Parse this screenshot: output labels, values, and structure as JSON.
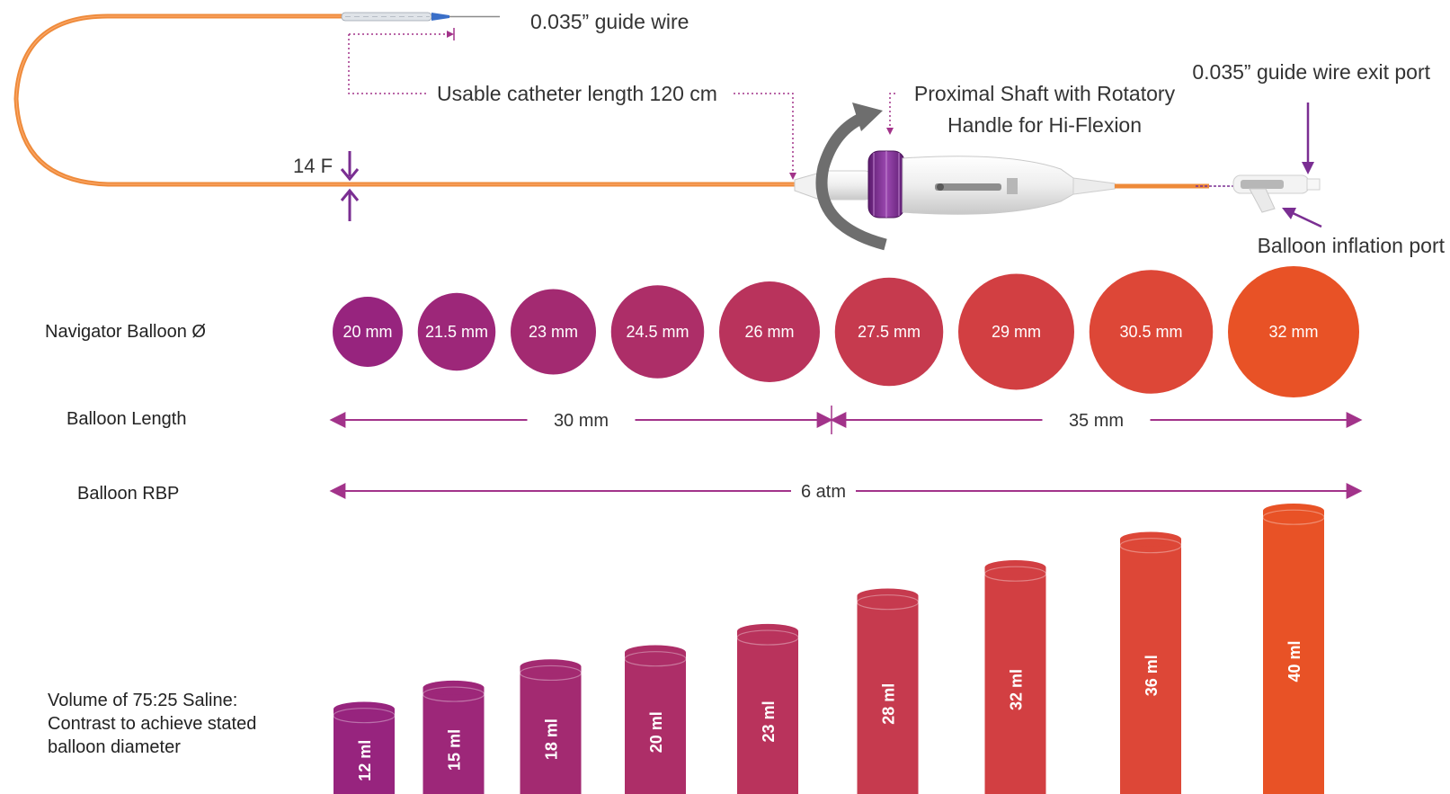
{
  "catheter": {
    "guide_wire_label": "0.035” guide wire",
    "usable_length_label": "Usable catheter length 120 cm",
    "french_size_label": "14 F",
    "handle_label_line1": "Proximal Shaft with Rotatory",
    "handle_label_line2": "Handle for Hi-Flexion",
    "exit_port_label": "0.035” guide wire exit port",
    "inflation_port_label": "Balloon inflation port",
    "colors": {
      "shaft": "#ee8a3a",
      "handle_cap": "#7b2d8e",
      "arrow": "#7a2e92",
      "rotate_arrow": "#6e6e6e"
    }
  },
  "rows": {
    "diameter_label": "Navigator Balloon Ø",
    "length_label": "Balloon Length",
    "rbp_label": "Balloon RBP",
    "volume_label_line1": "Volume of 75:25 Saline:",
    "volume_label_line2": "Contrast to achieve stated",
    "volume_label_line3": "balloon diameter"
  },
  "balloons": [
    {
      "diameter_label": "20 mm",
      "diameter_mm": 20,
      "volume_label": "12 ml",
      "volume_ml": 12,
      "color": "#97247e"
    },
    {
      "diameter_label": "21.5 mm",
      "diameter_mm": 21.5,
      "volume_label": "15 ml",
      "volume_ml": 15,
      "color": "#9d2779"
    },
    {
      "diameter_label": "23 mm",
      "diameter_mm": 23,
      "volume_label": "18 ml",
      "volume_ml": 18,
      "color": "#a32a71"
    },
    {
      "diameter_label": "24.5 mm",
      "diameter_mm": 24.5,
      "volume_label": "20 ml",
      "volume_ml": 20,
      "color": "#ad2e68"
    },
    {
      "diameter_label": "26 mm",
      "diameter_mm": 26,
      "volume_label": "23 ml",
      "volume_ml": 23,
      "color": "#b9335c"
    },
    {
      "diameter_label": "27.5 mm",
      "diameter_mm": 27.5,
      "volume_label": "28 ml",
      "volume_ml": 28,
      "color": "#c63a4e"
    },
    {
      "diameter_label": "29 mm",
      "diameter_mm": 29,
      "volume_label": "32 ml",
      "volume_ml": 32,
      "color": "#d23f42"
    },
    {
      "diameter_label": "30.5 mm",
      "diameter_mm": 30.5,
      "volume_label": "36 ml",
      "volume_ml": 36,
      "color": "#dd4737"
    },
    {
      "diameter_label": "32 mm",
      "diameter_mm": 32,
      "volume_label": "40 ml",
      "volume_ml": 40,
      "color": "#e85226"
    }
  ],
  "length_spans": [
    {
      "label": "30 mm",
      "from": 0,
      "to": 4
    },
    {
      "label": "35 mm",
      "from": 5,
      "to": 8
    }
  ],
  "rbp": {
    "label": "6 atm"
  },
  "dimension_color": "#a2338a"
}
